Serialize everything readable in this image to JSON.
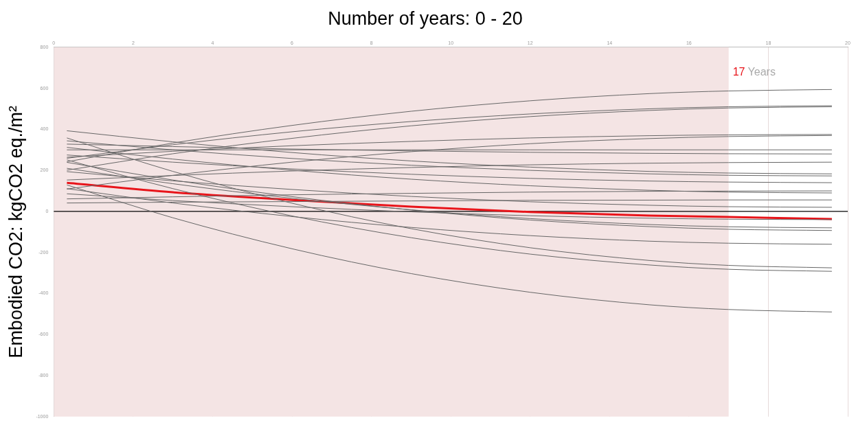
{
  "chart_data": {
    "type": "line",
    "title": "Number of years: 0 - 20",
    "ylabel": "Embodied CO2: kgCO2 eq./m²",
    "x": [
      0.33,
      3,
      6,
      9,
      12,
      15,
      17,
      19.6
    ],
    "xlim": [
      0,
      20
    ],
    "xticks": [
      0,
      2,
      4,
      6,
      8,
      10,
      12,
      14,
      16,
      18,
      20
    ],
    "ylim": [
      -1000,
      800
    ],
    "yticks": [
      800,
      600,
      400,
      200,
      0,
      -200,
      -400,
      -600,
      -800,
      -1000
    ],
    "grid": "x",
    "marker": "none",
    "line_style": "solid",
    "bands": [
      {
        "axis": "x",
        "from": 0,
        "to": 17,
        "label": "17 Years",
        "color": "#f4e4e4"
      }
    ],
    "ref_lines": [
      {
        "axis": "y",
        "value": 0,
        "color": "#000000"
      }
    ],
    "series": [
      {
        "color": "#666666",
        "values": [
          242,
          333,
          419,
          488,
          539,
          574,
          587,
          594
        ]
      },
      {
        "color": "#666666",
        "values": [
          201,
          281,
          356,
          417,
          462,
          492,
          504,
          510
        ]
      },
      {
        "color": "#666666",
        "values": [
          259,
          325,
          388,
          438,
          475,
          500,
          510,
          515
        ]
      },
      {
        "color": "#666666",
        "values": [
          264,
          293,
          320,
          341,
          358,
          369,
          373,
          375
        ]
      },
      {
        "color": "#666666",
        "values": [
          109,
          176,
          240,
          291,
          330,
          355,
          365,
          370
        ]
      },
      {
        "color": "#666666",
        "values": [
          300,
          300,
          300,
          300,
          300,
          300,
          300,
          300
        ]
      },
      {
        "color": "#666666",
        "values": [
          328,
          316,
          304,
          295,
          288,
          283,
          281,
          280
        ]
      },
      {
        "color": "#666666",
        "values": [
          153,
          175,
          197,
          214,
          227,
          235,
          238,
          240
        ]
      },
      {
        "color": "#666666",
        "values": [
          393,
          339,
          287,
          246,
          216,
          195,
          187,
          183
        ]
      },
      {
        "color": "#666666",
        "values": [
          344,
          300,
          258,
          225,
          200,
          183,
          176,
          173
        ]
      },
      {
        "color": "#666666",
        "values": [
          275,
          240,
          207,
          181,
          161,
          148,
          143,
          140
        ]
      },
      {
        "color": "#666666",
        "values": [
          61,
          71,
          81,
          88,
          94,
          98,
          99,
          100
        ]
      },
      {
        "color": "#666666",
        "values": [
          312,
          255,
          201,
          157,
          125,
          103,
          94,
          90
        ]
      },
      {
        "color": "#666666",
        "values": [
          41,
          45,
          48,
          51,
          54,
          55,
          56,
          56
        ]
      },
      {
        "color": "#666666",
        "values": [
          210,
          135,
          64,
          8,
          -35,
          -64,
          -75,
          -80
        ]
      },
      {
        "color": "#666666",
        "values": [
          239,
          153,
          72,
          7,
          -42,
          -74,
          -87,
          -93
        ]
      },
      {
        "color": "#666666",
        "values": [
          111,
          41,
          -25,
          -78,
          -118,
          -145,
          -155,
          -160
        ]
      },
      {
        "color": "#666666",
        "values": [
          358,
          195,
          40,
          -84,
          -177,
          -239,
          -263,
          -275
        ]
      },
      {
        "color": "#666666",
        "values": [
          251,
          111,
          -22,
          -128,
          -208,
          -261,
          -282,
          -292
        ]
      },
      {
        "color": "#666666",
        "values": [
          129,
          -31,
          -182,
          -303,
          -394,
          -455,
          -478,
          -490
        ]
      },
      {
        "color": "#666666",
        "values": [
          194,
          149,
          107,
          73,
          47,
          30,
          23,
          20
        ]
      },
      {
        "color": "#666666",
        "values": [
          86,
          53,
          23,
          -2,
          -21,
          -33,
          -38,
          -40
        ]
      },
      {
        "color": "#e8141a",
        "values": [
          139,
          93,
          56,
          23,
          -3,
          -20,
          -27,
          -37
        ]
      }
    ]
  }
}
